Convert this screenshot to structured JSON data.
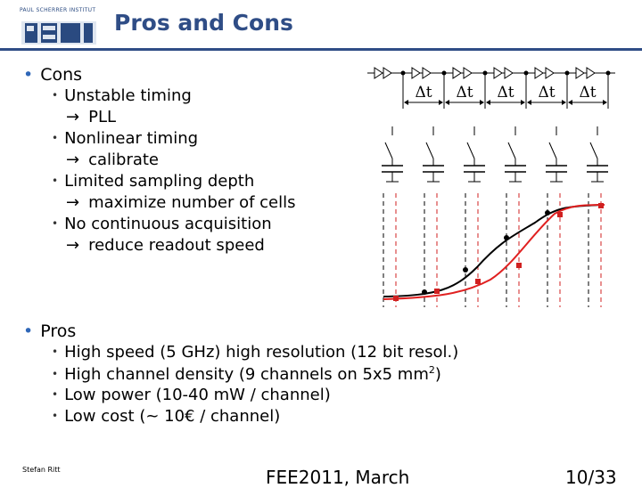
{
  "header": {
    "logo_text": "PAUL SCHERRER INSTITUT",
    "logo_mark": "PSI",
    "title": "Pros and Cons"
  },
  "cons": {
    "heading": "Cons",
    "items": [
      {
        "text": "Unstable timing",
        "remedy": "PLL"
      },
      {
        "text": "Nonlinear timing",
        "remedy": "calibrate"
      },
      {
        "text": "Limited sampling depth",
        "remedy": "maximize number of cells"
      },
      {
        "text": "No continuous acquisition",
        "remedy": "reduce readout speed"
      }
    ],
    "arrow_symbol": "→"
  },
  "diagram": {
    "delta_label": "Δt",
    "curve_colors": {
      "ideal": "#000000",
      "distorted": "#e02020"
    }
  },
  "pros": {
    "heading": "Pros",
    "items": [
      {
        "text": "High speed (5 GHz) high resolution (12 bit resol.)"
      },
      {
        "text_before": "High channel density (9 channels on 5x5 mm",
        "sup": "2",
        "text_after": ")"
      },
      {
        "text": "Low power (10-40 mW / channel)"
      },
      {
        "text": "Low cost (~ 10€ / channel)"
      }
    ]
  },
  "footer": {
    "author": "Stefan Ritt",
    "event": "FEE2011, March",
    "page": "10/33"
  }
}
